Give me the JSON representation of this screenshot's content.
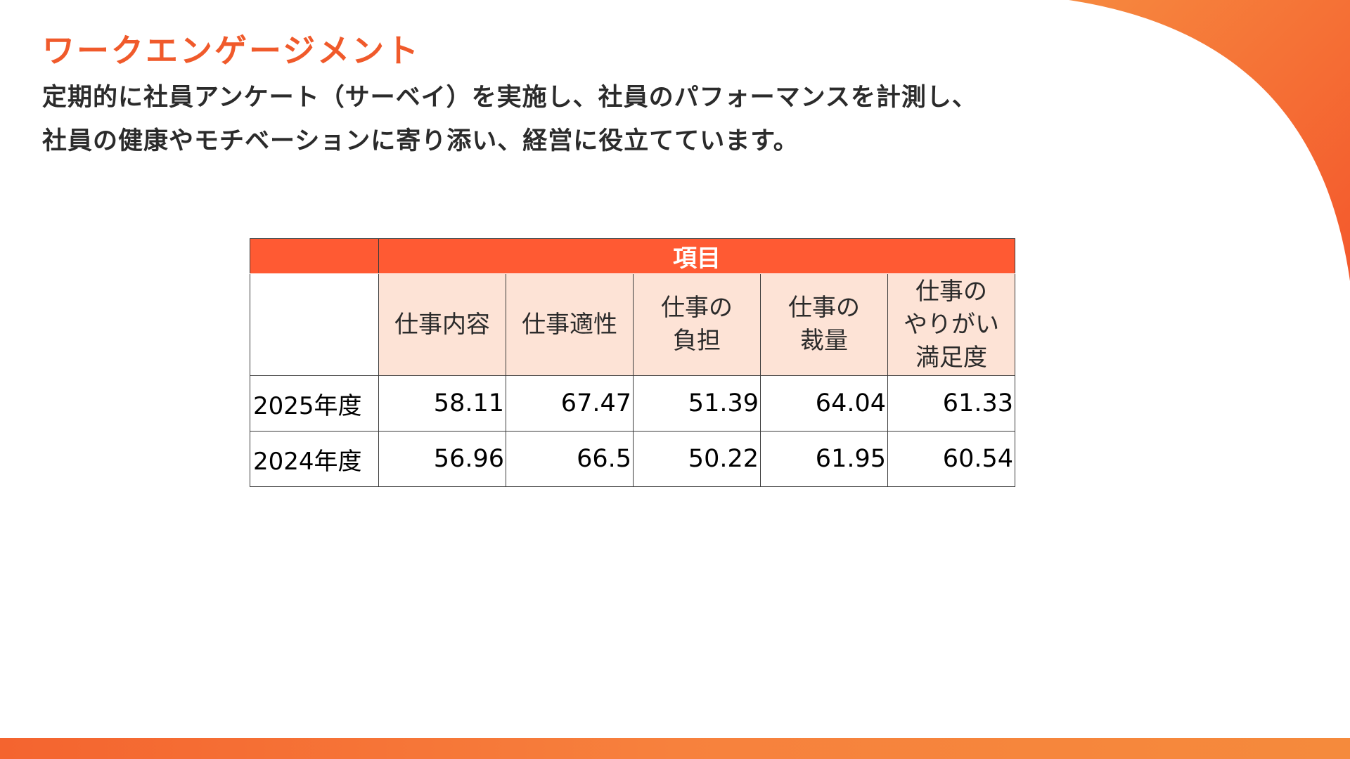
{
  "title": "ワークエンゲージメント",
  "description": {
    "line1": "定期的に社員アンケート（サーベイ）を実施し、社員のパフォーマンスを計測し、",
    "line2": "社員の健康やモチベーションに寄り添い、経営に役立てています。"
  },
  "colors": {
    "accent": "#f05a2b",
    "header_bg": "#ff5a33",
    "category_bg": "#fde3d6"
  },
  "table": {
    "group_header": "項目",
    "categories": [
      [
        "仕事内容"
      ],
      [
        "仕事適性"
      ],
      [
        "仕事の",
        "負担"
      ],
      [
        "仕事の",
        "裁量"
      ],
      [
        "仕事の",
        "やりがい",
        "満足度"
      ]
    ],
    "rows": [
      {
        "year": "2025年度",
        "values": [
          "58.11",
          "67.47",
          "51.39",
          "64.04",
          "61.33"
        ]
      },
      {
        "year": "2024年度",
        "values": [
          "56.96",
          "66.5",
          "50.22",
          "61.95",
          "60.54"
        ]
      }
    ]
  }
}
